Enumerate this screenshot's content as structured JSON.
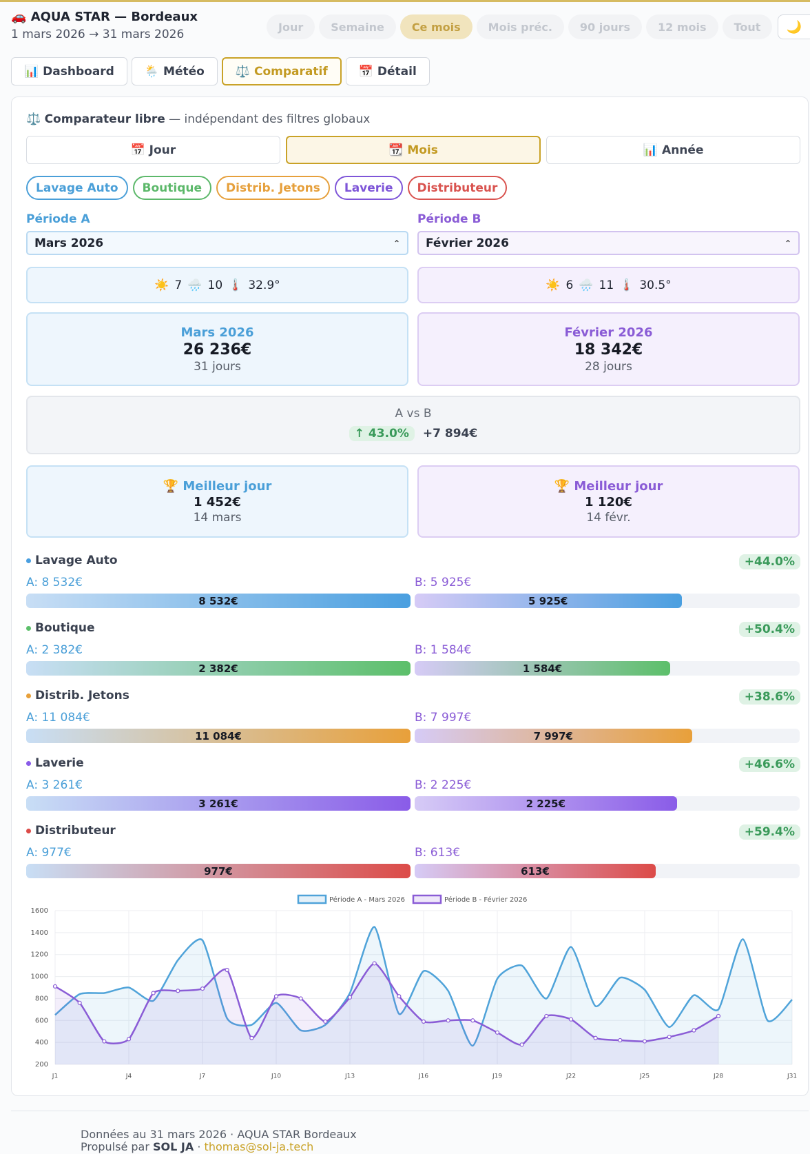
{
  "header": {
    "icon": "🚗",
    "title": "AQUA STAR — Bordeaux",
    "date_range": "1 mars 2026 → 31 mars 2026",
    "periods": [
      "Jour",
      "Semaine",
      "Ce mois",
      "Mois préc.",
      "90 jours",
      "12 mois",
      "Tout"
    ],
    "active_period": 2,
    "theme_toggle": "🌙"
  },
  "tabs": {
    "items": [
      {
        "icon": "📊",
        "label": "Dashboard"
      },
      {
        "icon": "🌦️",
        "label": "Météo"
      },
      {
        "icon": "⚖️",
        "label": "Comparatif"
      },
      {
        "icon": "📅",
        "label": "Détail"
      }
    ],
    "active": 2
  },
  "comparator": {
    "icon": "⚖️",
    "title": "Comparateur libre",
    "subtitle": "— indépendant des filtres globaux",
    "granularity": {
      "items": [
        {
          "icon": "📅",
          "label": "Jour"
        },
        {
          "icon": "📆",
          "label": "Mois"
        },
        {
          "icon": "📊",
          "label": "Année"
        }
      ],
      "active": 1
    },
    "filters": [
      {
        "label": "Lavage Auto",
        "color": "#4a9fd8"
      },
      {
        "label": "Boutique",
        "color": "#5cb86a"
      },
      {
        "label": "Distrib. Jetons",
        "color": "#e6a03c"
      },
      {
        "label": "Laverie",
        "color": "#7e55d8"
      },
      {
        "label": "Distributeur",
        "color": "#d9534f"
      }
    ],
    "period_a": {
      "label": "Période A",
      "selected": "Mars 2026",
      "color": "#4a9fd8",
      "weather": {
        "sun_icon": "☀️",
        "sun": "7",
        "rain_icon": "🌧️",
        "rain": "10",
        "temp_icon": "🌡️",
        "temp": "32.9°"
      },
      "summary": {
        "name": "Mars 2026",
        "total": "26 236€",
        "days": "31 jours"
      },
      "best_day": {
        "icon": "🏆",
        "label": "Meilleur jour",
        "amount": "1 452€",
        "date": "14 mars"
      }
    },
    "period_b": {
      "label": "Période B",
      "selected": "Février 2026",
      "color": "#8a5cd6",
      "weather": {
        "sun_icon": "☀️",
        "sun": "6",
        "rain_icon": "🌧️",
        "rain": "11",
        "temp_icon": "🌡️",
        "temp": "30.5°"
      },
      "summary": {
        "name": "Février 2026",
        "total": "18 342€",
        "days": "28 jours"
      },
      "best_day": {
        "icon": "🏆",
        "label": "Meilleur jour",
        "amount": "1 120€",
        "date": "14 févr."
      }
    },
    "versus": {
      "label": "A vs B",
      "change": "↑ 43.0%",
      "difference": "+7 894€"
    },
    "breakdown": [
      {
        "name": "Lavage Auto",
        "color": "#4a9fe0",
        "change": "+44.0%",
        "a": {
          "label": "A: 8 532€",
          "value": 8532,
          "value_label": "8 532€"
        },
        "b": {
          "label": "B: 5 925€",
          "value": 5925,
          "value_label": "5 925€"
        }
      },
      {
        "name": "Boutique",
        "color": "#5cbf6a",
        "change": "+50.4%",
        "a": {
          "label": "A: 2 382€",
          "value": 2382,
          "value_label": "2 382€"
        },
        "b": {
          "label": "B: 1 584€",
          "value": 1584,
          "value_label": "1 584€"
        }
      },
      {
        "name": "Distrib. Jetons",
        "color": "#e8a03a",
        "change": "+38.6%",
        "a": {
          "label": "A: 11 084€",
          "value": 11084,
          "value_label": "11 084€"
        },
        "b": {
          "label": "B: 7 997€",
          "value": 7997,
          "value_label": "7 997€"
        }
      },
      {
        "name": "Laverie",
        "color": "#8a5ce8",
        "change": "+46.6%",
        "a": {
          "label": "A: 3 261€",
          "value": 3261,
          "value_label": "3 261€"
        },
        "b": {
          "label": "B: 2 225€",
          "value": 2225,
          "value_label": "2 225€"
        }
      },
      {
        "name": "Distributeur",
        "color": "#dc4b48",
        "change": "+59.4%",
        "a": {
          "label": "A: 977€",
          "value": 977,
          "value_label": "977€"
        },
        "b": {
          "label": "B: 613€",
          "value": 613,
          "value_label": "613€"
        }
      }
    ]
  },
  "chart_data": {
    "type": "line",
    "categories": [
      "J1",
      null,
      null,
      "J4",
      null,
      null,
      "J7",
      null,
      null,
      "J10",
      null,
      null,
      "J13",
      null,
      null,
      "J16",
      null,
      null,
      "J19",
      null,
      null,
      "J22",
      null,
      null,
      "J25",
      null,
      null,
      "J28",
      null,
      null,
      "J31"
    ],
    "series": [
      {
        "name": "Période A - Mars 2026",
        "color": "#4fa3d9",
        "values": [
          650,
          840,
          850,
          900,
          780,
          1150,
          1330,
          620,
          560,
          760,
          510,
          560,
          850,
          1452,
          660,
          1050,
          870,
          370,
          980,
          1100,
          800,
          1270,
          730,
          990,
          880,
          540,
          830,
          700,
          1340,
          600,
          790
        ]
      },
      {
        "name": "Période B - Février 2026",
        "color": "#8a5cd6",
        "values": [
          910,
          760,
          410,
          430,
          850,
          870,
          890,
          1060,
          440,
          820,
          800,
          590,
          810,
          1120,
          820,
          590,
          600,
          600,
          490,
          380,
          640,
          610,
          440,
          420,
          410,
          450,
          510,
          640,
          null,
          null,
          null
        ]
      }
    ],
    "ylim": [
      200,
      1600
    ],
    "yticks": [
      200,
      400,
      600,
      800,
      1000,
      1200,
      1400,
      1600
    ],
    "grid": true
  },
  "footer": {
    "updated": "Données au 31 mars 2026 · AQUA STAR Bordeaux",
    "powered_prefix": "Propulsé par",
    "powered_by": "SOL JA",
    "separator": "·",
    "email": "thomas@sol-ja.tech"
  }
}
